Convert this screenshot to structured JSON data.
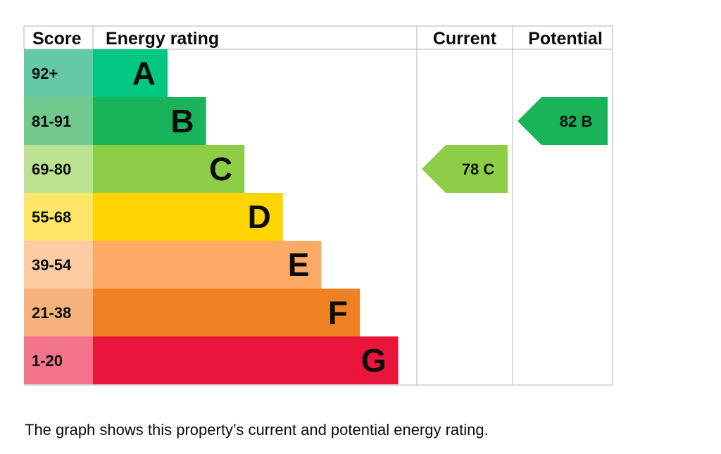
{
  "chart_data": {
    "type": "table",
    "headers": {
      "score": "Score",
      "energy_rating": "Energy rating",
      "current": "Current",
      "potential": "Potential"
    },
    "bands": [
      {
        "letter": "A",
        "range": "92+",
        "band_color": "#00c781",
        "score_color": "#64c9a7"
      },
      {
        "letter": "B",
        "range": "81-91",
        "band_color": "#19b459",
        "score_color": "#71c98e"
      },
      {
        "letter": "C",
        "range": "69-80",
        "band_color": "#8dce46",
        "score_color": "#bbe291"
      },
      {
        "letter": "D",
        "range": "55-68",
        "band_color": "#ffd500",
        "score_color": "#ffe666"
      },
      {
        "letter": "E",
        "range": "39-54",
        "band_color": "#fcaa65",
        "score_color": "#fdcca3"
      },
      {
        "letter": "F",
        "range": "21-38",
        "band_color": "#ef8023",
        "score_color": "#f5b37b"
      },
      {
        "letter": "G",
        "range": "1-20",
        "band_color": "#e9153b",
        "score_color": "#f2738a"
      }
    ],
    "current": {
      "value": 78,
      "letter": "C",
      "label": "78  C",
      "color": "#8dce46"
    },
    "potential": {
      "value": 82,
      "letter": "B",
      "label": "82  B",
      "color": "#19b459"
    }
  },
  "caption": "The graph shows this property’s current and potential energy rating."
}
